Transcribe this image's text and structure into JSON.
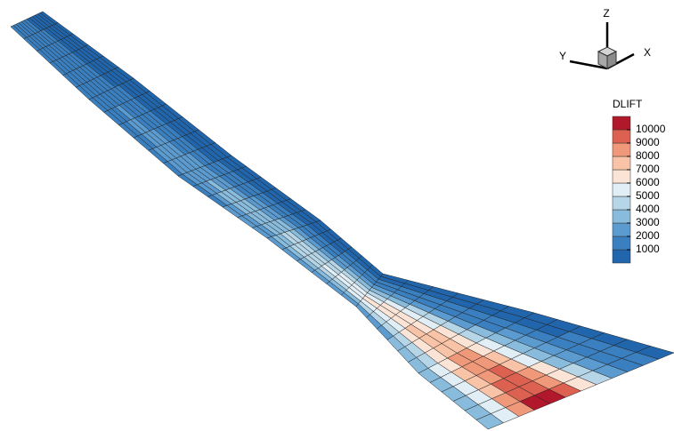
{
  "chart_data": {
    "type": "contour",
    "colorbar": {
      "title": "DLIFT",
      "ticks": [
        1000,
        2000,
        3000,
        4000,
        5000,
        6000,
        7000,
        8000,
        9000,
        10000
      ],
      "colors": [
        "#2166ac",
        "#3a7fbf",
        "#5b9bcf",
        "#88bbdc",
        "#b6d6e8",
        "#e2eef5",
        "#fbe3d6",
        "#f8c3a6",
        "#f0997a",
        "#dd6150",
        "#b2182b"
      ]
    },
    "axes_triad": {
      "x": "X",
      "y": "Y",
      "z": "Z"
    }
  }
}
